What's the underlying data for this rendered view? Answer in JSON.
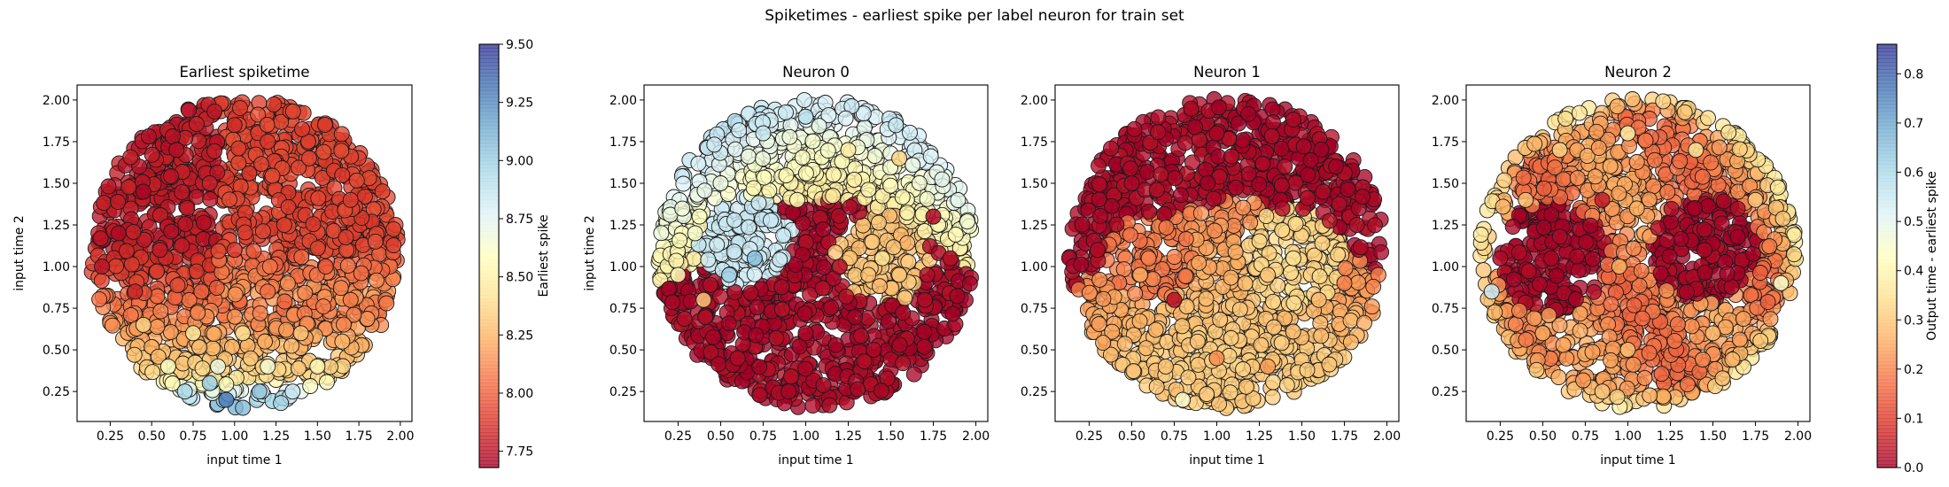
{
  "figure": {
    "suptitle": "Spiketimes - earliest spike per label neuron for train set"
  },
  "colorbars": {
    "left": {
      "label": "Earliest spike",
      "range": [
        7.68,
        9.5
      ],
      "ticks": [
        "7.75",
        "8.00",
        "8.25",
        "8.50",
        "8.75",
        "9.00",
        "9.25",
        "9.50"
      ],
      "tick_values": [
        7.75,
        8.0,
        8.25,
        8.5,
        8.75,
        9.0,
        9.25,
        9.5
      ]
    },
    "right": {
      "label": "Output time - earliest spike",
      "range": [
        0.0,
        0.86
      ],
      "ticks": [
        "0.0",
        "0.1",
        "0.2",
        "0.3",
        "0.4",
        "0.5",
        "0.6",
        "0.7",
        "0.8"
      ],
      "tick_values": [
        0.0,
        0.1,
        0.2,
        0.3,
        0.4,
        0.5,
        0.6,
        0.7,
        0.8
      ]
    },
    "colormap": [
      "#a50026",
      "#d73027",
      "#f46d43",
      "#fdae61",
      "#fee090",
      "#ffffbf",
      "#e0f3f8",
      "#abd9e9",
      "#74add1",
      "#4575b4",
      "#313695"
    ]
  },
  "chart_data": [
    {
      "type": "scatter",
      "title": "Earliest spiketime",
      "xlabel": "input time 1",
      "ylabel": "input time 2",
      "xlim": [
        0.05,
        2.07
      ],
      "ylim": [
        0.07,
        2.09
      ],
      "xticks": [
        "0.25",
        "0.50",
        "0.75",
        "1.00",
        "1.25",
        "1.50",
        "1.75",
        "2.00"
      ],
      "yticks": [
        "0.25",
        "0.50",
        "0.75",
        "1.00",
        "1.25",
        "1.50",
        "1.75",
        "2.00"
      ],
      "tick_values": [
        0.25,
        0.5,
        0.75,
        1.0,
        1.25,
        1.5,
        1.75,
        2.0
      ],
      "colorbar": "left",
      "points": [
        {
          "x": 0.45,
          "y": 1.45,
          "c": 7.7
        },
        {
          "x": 0.65,
          "y": 1.7,
          "c": 7.74
        },
        {
          "x": 0.3,
          "y": 1.2,
          "c": 7.72
        },
        {
          "x": 0.55,
          "y": 1.1,
          "c": 7.78
        },
        {
          "x": 0.85,
          "y": 1.5,
          "c": 7.8
        },
        {
          "x": 0.2,
          "y": 1.0,
          "c": 7.76
        },
        {
          "x": 0.4,
          "y": 0.85,
          "c": 7.82
        },
        {
          "x": 1.0,
          "y": 1.85,
          "c": 7.84
        },
        {
          "x": 1.2,
          "y": 1.75,
          "c": 7.88
        },
        {
          "x": 1.45,
          "y": 1.65,
          "c": 7.92
        },
        {
          "x": 1.7,
          "y": 1.4,
          "c": 7.9
        },
        {
          "x": 1.85,
          "y": 1.15,
          "c": 7.95
        },
        {
          "x": 1.3,
          "y": 1.25,
          "c": 7.9
        },
        {
          "x": 1.0,
          "y": 1.1,
          "c": 7.87
        },
        {
          "x": 1.55,
          "y": 1.0,
          "c": 7.98
        },
        {
          "x": 0.8,
          "y": 0.85,
          "c": 8.0
        },
        {
          "x": 1.2,
          "y": 0.85,
          "c": 8.05
        },
        {
          "x": 1.7,
          "y": 0.8,
          "c": 8.08
        },
        {
          "x": 0.45,
          "y": 0.65,
          "c": 8.35
        },
        {
          "x": 0.75,
          "y": 0.6,
          "c": 8.45
        },
        {
          "x": 1.05,
          "y": 0.6,
          "c": 8.4
        },
        {
          "x": 1.4,
          "y": 0.6,
          "c": 8.3
        },
        {
          "x": 1.65,
          "y": 0.55,
          "c": 8.25
        },
        {
          "x": 0.6,
          "y": 0.4,
          "c": 8.6
        },
        {
          "x": 0.9,
          "y": 0.4,
          "c": 8.7
        },
        {
          "x": 1.2,
          "y": 0.4,
          "c": 8.65
        },
        {
          "x": 1.5,
          "y": 0.4,
          "c": 8.55
        },
        {
          "x": 0.7,
          "y": 0.25,
          "c": 8.95
        },
        {
          "x": 0.95,
          "y": 0.2,
          "c": 9.3
        },
        {
          "x": 1.15,
          "y": 0.25,
          "c": 9.05
        },
        {
          "x": 1.35,
          "y": 0.25,
          "c": 8.85
        },
        {
          "x": 0.85,
          "y": 0.3,
          "c": 9.0
        }
      ]
    },
    {
      "type": "scatter",
      "title": "Neuron 0",
      "xlabel": "input time 1",
      "ylabel": "input time 2",
      "xlim": [
        0.05,
        2.07
      ],
      "ylim": [
        0.07,
        2.09
      ],
      "xticks": [
        "0.25",
        "0.50",
        "0.75",
        "1.00",
        "1.25",
        "1.50",
        "1.75",
        "2.00"
      ],
      "yticks": [
        "0.25",
        "0.50",
        "0.75",
        "1.00",
        "1.25",
        "1.50",
        "1.75",
        "2.00"
      ],
      "tick_values": [
        0.25,
        0.5,
        0.75,
        1.0,
        1.25,
        1.5,
        1.75,
        2.0
      ],
      "colorbar": "right",
      "points": [
        {
          "x": 0.5,
          "y": 1.5,
          "c": 0.48
        },
        {
          "x": 0.75,
          "y": 1.8,
          "c": 0.55
        },
        {
          "x": 1.0,
          "y": 1.9,
          "c": 0.58
        },
        {
          "x": 0.35,
          "y": 1.2,
          "c": 0.45
        },
        {
          "x": 0.7,
          "y": 1.05,
          "c": 0.65
        },
        {
          "x": 0.55,
          "y": 0.95,
          "c": 0.62
        },
        {
          "x": 0.25,
          "y": 0.95,
          "c": 0.42
        },
        {
          "x": 0.95,
          "y": 1.4,
          "c": 0.4
        },
        {
          "x": 1.25,
          "y": 1.7,
          "c": 0.38
        },
        {
          "x": 1.55,
          "y": 1.65,
          "c": 0.33
        },
        {
          "x": 0.4,
          "y": 0.8,
          "c": 0.3
        },
        {
          "x": 1.45,
          "y": 1.05,
          "c": 0.35
        },
        {
          "x": 1.55,
          "y": 0.95,
          "c": 0.3
        },
        {
          "x": 1.75,
          "y": 1.3,
          "c": 0.02
        },
        {
          "x": 1.2,
          "y": 1.0,
          "c": 0.02
        },
        {
          "x": 1.0,
          "y": 0.6,
          "c": 0.01
        },
        {
          "x": 0.6,
          "y": 0.45,
          "c": 0.02
        },
        {
          "x": 1.4,
          "y": 0.5,
          "c": 0.01
        },
        {
          "x": 1.7,
          "y": 0.8,
          "c": 0.02
        },
        {
          "x": 0.9,
          "y": 0.25,
          "c": 0.01
        },
        {
          "x": 1.85,
          "y": 1.05,
          "c": 0.03
        }
      ]
    },
    {
      "type": "scatter",
      "title": "Neuron 1",
      "xlabel": "input time 1",
      "ylabel": "input time 2",
      "xlim": [
        0.05,
        2.07
      ],
      "ylim": [
        0.07,
        2.09
      ],
      "xticks": [
        "0.25",
        "0.50",
        "0.75",
        "1.00",
        "1.25",
        "1.50",
        "1.75",
        "2.00"
      ],
      "yticks": [
        "0.25",
        "0.50",
        "0.75",
        "1.00",
        "1.25",
        "1.50",
        "1.75",
        "2.00"
      ],
      "tick_values": [
        0.25,
        0.5,
        0.75,
        1.0,
        1.25,
        1.5,
        1.75,
        2.0
      ],
      "colorbar": "right",
      "points": [
        {
          "x": 0.5,
          "y": 1.5,
          "c": 0.01
        },
        {
          "x": 1.0,
          "y": 1.8,
          "c": 0.01
        },
        {
          "x": 0.3,
          "y": 1.1,
          "c": 0.02
        },
        {
          "x": 1.4,
          "y": 1.6,
          "c": 0.02
        },
        {
          "x": 0.75,
          "y": 0.8,
          "c": 0.03
        },
        {
          "x": 0.6,
          "y": 1.05,
          "c": 0.2
        },
        {
          "x": 0.55,
          "y": 0.95,
          "c": 0.25
        },
        {
          "x": 1.3,
          "y": 0.95,
          "c": 0.3
        },
        {
          "x": 1.45,
          "y": 1.05,
          "c": 0.35
        },
        {
          "x": 1.6,
          "y": 0.8,
          "c": 0.28
        },
        {
          "x": 1.0,
          "y": 0.45,
          "c": 0.22
        },
        {
          "x": 1.3,
          "y": 0.4,
          "c": 0.24
        },
        {
          "x": 0.7,
          "y": 0.4,
          "c": 0.3
        },
        {
          "x": 0.8,
          "y": 0.2,
          "c": 0.45
        },
        {
          "x": 1.75,
          "y": 0.9,
          "c": 0.2
        }
      ]
    },
    {
      "type": "scatter",
      "title": "Neuron 2",
      "xlabel": "input time 1",
      "ylabel": "input time 2",
      "xlim": [
        0.05,
        2.07
      ],
      "ylim": [
        0.07,
        2.09
      ],
      "xticks": [
        "0.25",
        "0.50",
        "0.75",
        "1.00",
        "1.25",
        "1.50",
        "1.75",
        "2.00"
      ],
      "yticks": [
        "0.25",
        "0.50",
        "0.75",
        "1.00",
        "1.25",
        "1.50",
        "1.75",
        "2.00"
      ],
      "tick_values": [
        0.25,
        0.5,
        0.75,
        1.0,
        1.25,
        1.5,
        1.75,
        2.0
      ],
      "colorbar": "right",
      "points": [
        {
          "x": 0.55,
          "y": 1.05,
          "c": 0.01
        },
        {
          "x": 1.45,
          "y": 1.1,
          "c": 0.01
        },
        {
          "x": 0.25,
          "y": 1.05,
          "c": 0.02
        },
        {
          "x": 0.85,
          "y": 1.4,
          "c": 0.05
        },
        {
          "x": 1.0,
          "y": 1.8,
          "c": 0.38
        },
        {
          "x": 0.6,
          "y": 1.7,
          "c": 0.32
        },
        {
          "x": 1.4,
          "y": 1.7,
          "c": 0.36
        },
        {
          "x": 0.4,
          "y": 1.4,
          "c": 0.28
        },
        {
          "x": 1.75,
          "y": 1.4,
          "c": 0.3
        },
        {
          "x": 0.95,
          "y": 1.0,
          "c": 0.26
        },
        {
          "x": 0.5,
          "y": 0.6,
          "c": 0.25
        },
        {
          "x": 1.0,
          "y": 0.5,
          "c": 0.28
        },
        {
          "x": 1.5,
          "y": 0.6,
          "c": 0.27
        },
        {
          "x": 0.2,
          "y": 0.85,
          "c": 0.55
        },
        {
          "x": 1.9,
          "y": 0.9,
          "c": 0.45
        },
        {
          "x": 0.85,
          "y": 0.25,
          "c": 0.3
        }
      ]
    }
  ]
}
